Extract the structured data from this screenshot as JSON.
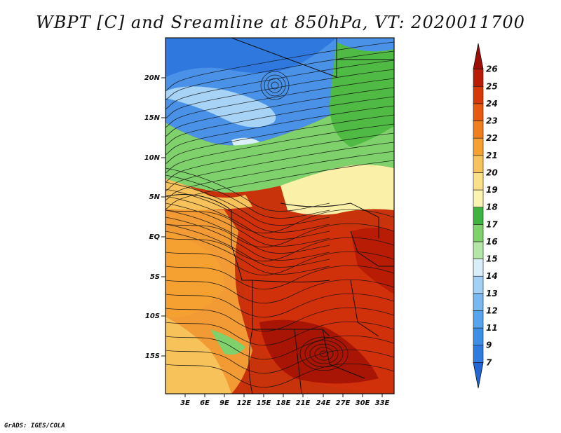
{
  "title": "WBPT [C] and Sreamline at 850hPa, VT: 2020011700",
  "credit": "GrADS: IGES/COLA",
  "map": {
    "lat_ticks": [
      "20N",
      "15N",
      "10N",
      "5N",
      "EQ",
      "5S",
      "10S",
      "15S"
    ],
    "lon_ticks": [
      "3E",
      "6E",
      "9E",
      "12E",
      "15E",
      "18E",
      "21E",
      "24E",
      "27E",
      "30E",
      "33E"
    ],
    "lon_range": [
      0,
      35
    ],
    "lat_range": [
      -20,
      25
    ]
  },
  "colorbar": {
    "labels": [
      "7",
      "9",
      "11",
      "12",
      "13",
      "14",
      "15",
      "16",
      "17",
      "18",
      "19",
      "20",
      "21",
      "22",
      "23",
      "24",
      "25",
      "26"
    ],
    "colors": [
      "#2166d6",
      "#2f7be0",
      "#3d8fe6",
      "#57a3ec",
      "#7ab8f0",
      "#a3d0f5",
      "#d8effa",
      "#b4e6a8",
      "#7fd16b",
      "#3fb33d",
      "#fbf3b0",
      "#fbe08a",
      "#f8c25a",
      "#f5a132",
      "#ee7f1c",
      "#e65a10",
      "#d73808",
      "#b81c05",
      "#9e0d03"
    ]
  }
}
